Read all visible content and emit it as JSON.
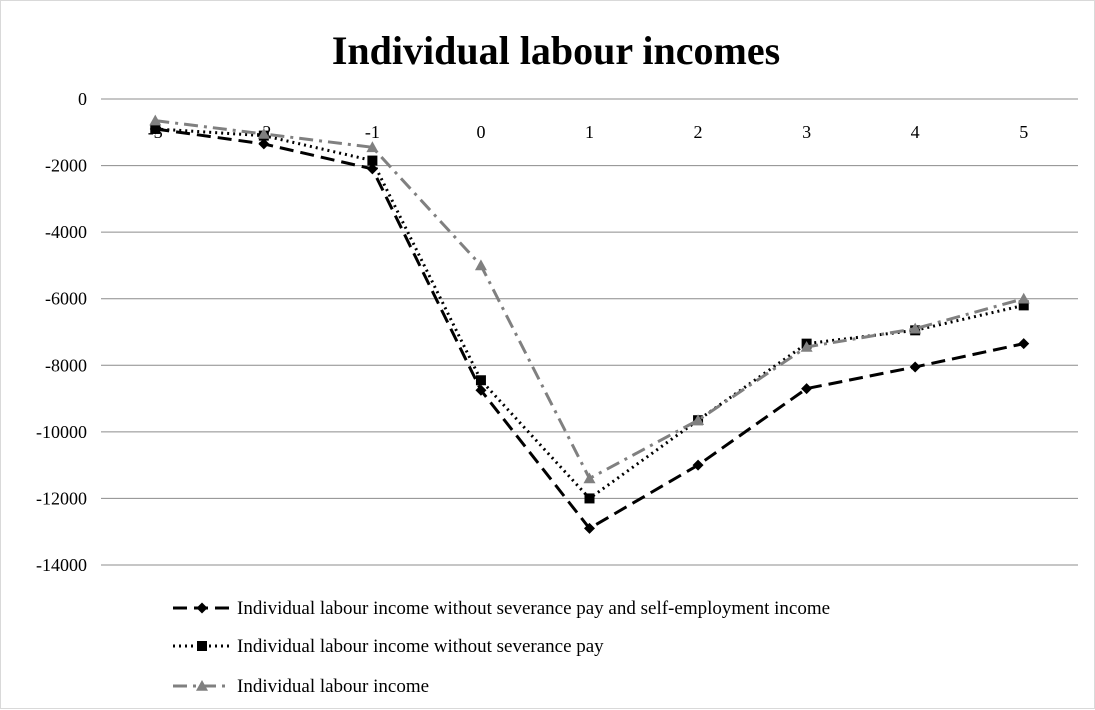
{
  "chart_data": {
    "type": "line",
    "title": "Individual labour incomes",
    "xlabel": "",
    "ylabel": "",
    "x": [
      -3,
      -2,
      -1,
      0,
      1,
      2,
      3,
      4,
      5
    ],
    "x_tick_labels": [
      "-3",
      "-2",
      "-1",
      "0",
      "1",
      "2",
      "3",
      "4",
      "5"
    ],
    "y_ticks": [
      0,
      -2000,
      -4000,
      -6000,
      -8000,
      -10000,
      -12000,
      -14000
    ],
    "y_tick_labels": [
      "0",
      "-2000",
      "-4000",
      "-6000",
      "-8000",
      "-10000",
      "-12000",
      "-14000"
    ],
    "ylim": [
      -14000,
      0
    ],
    "grid": true,
    "legend_position": "bottom",
    "series": [
      {
        "name": "Individual labour income without severance pay and self-employment income",
        "values": [
          -900,
          -1350,
          -2100,
          -8750,
          -12900,
          -11000,
          -8700,
          -8050,
          -7350
        ],
        "color": "#000000",
        "dash": "dashed",
        "marker": "diamond"
      },
      {
        "name": "Individual labour income without severance pay",
        "values": [
          -900,
          -1100,
          -1850,
          -8450,
          -12000,
          -9650,
          -7350,
          -6950,
          -6200
        ],
        "color": "#000000",
        "dash": "dotted",
        "marker": "square"
      },
      {
        "name": "Individual labour income",
        "values": [
          -650,
          -1050,
          -1450,
          -5000,
          -11400,
          -9650,
          -7450,
          -6900,
          -6000
        ],
        "color": "#808080",
        "dash": "dash-dot",
        "marker": "triangle"
      }
    ]
  }
}
